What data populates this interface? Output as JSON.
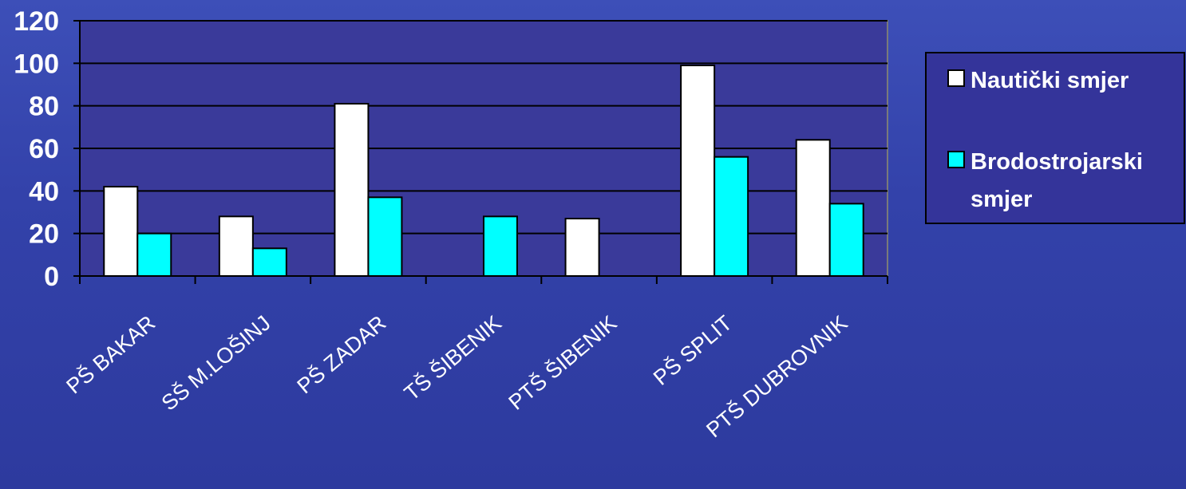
{
  "chart_data": {
    "type": "bar",
    "categories": [
      "PŠ BAKAR",
      "SŠ M.LOŠINJ",
      "PŠ ZADAR",
      "TŠ ŠIBENIK",
      "PTŠ ŠIBENIK",
      "PŠ SPLIT",
      "PTŠ DUBROVNIK"
    ],
    "series": [
      {
        "name": "Nautički smjer",
        "values": [
          42,
          28,
          81,
          null,
          27,
          99,
          64
        ],
        "color": "#ffffff"
      },
      {
        "name": "Brodostrojarski smjer",
        "values": [
          20,
          13,
          37,
          28,
          null,
          56,
          34
        ],
        "color": "#00ffff"
      }
    ],
    "yticks": [
      "0",
      "20",
      "40",
      "60",
      "80",
      "100",
      "120"
    ],
    "ylim": [
      0,
      120
    ],
    "grid": true,
    "legend": {
      "placement": "right",
      "entries": [
        "Nautički smjer",
        "Brodostrojarski",
        "smjer"
      ]
    },
    "plot_background": "#3a3a9a",
    "title": "",
    "xlabel": "",
    "ylabel": ""
  }
}
